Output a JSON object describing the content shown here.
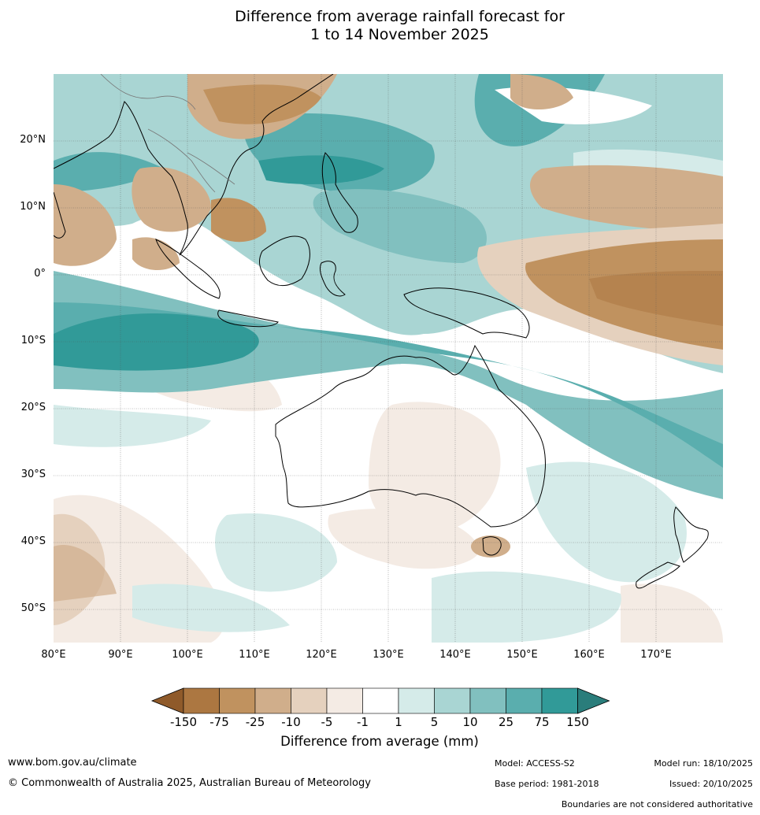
{
  "title_line1": "Difference from average rainfall forecast for",
  "title_line2": "1 to 14 November 2025",
  "lat_labels": [
    "20°N",
    "10°N",
    "0°",
    "10°S",
    "20°S",
    "30°S",
    "40°S",
    "50°S"
  ],
  "lon_labels": [
    "80°E",
    "90°E",
    "100°E",
    "110°E",
    "120°E",
    "130°E",
    "140°E",
    "150°E",
    "160°E",
    "170°E"
  ],
  "colorbar": {
    "labels": [
      "-150",
      "-75",
      "-25",
      "-10",
      "-5",
      "-1",
      "1",
      "5",
      "10",
      "25",
      "75",
      "150"
    ],
    "colors": [
      "#8f5a2a",
      "#ac7741",
      "#c0925f",
      "#d0ae8b",
      "#e5d1be",
      "#f4ebe4",
      "#ffffff",
      "#d5ebe9",
      "#a9d5d3",
      "#81c0bf",
      "#5aaeae",
      "#319a98",
      "#2a7d7b"
    ],
    "title": "Difference from average (mm)"
  },
  "footer": {
    "website": "www.bom.gov.au/climate",
    "copyright": "© Commonwealth of Australia 2025, Australian Bureau of Meteorology",
    "model": "Model: ACCESS-S2",
    "base_period": "Base period: 1981-2018",
    "model_run": "Model run: 18/10/2025",
    "issued": "Issued: 20/10/2025",
    "boundaries_note": "Boundaries are not considered authoritative"
  }
}
